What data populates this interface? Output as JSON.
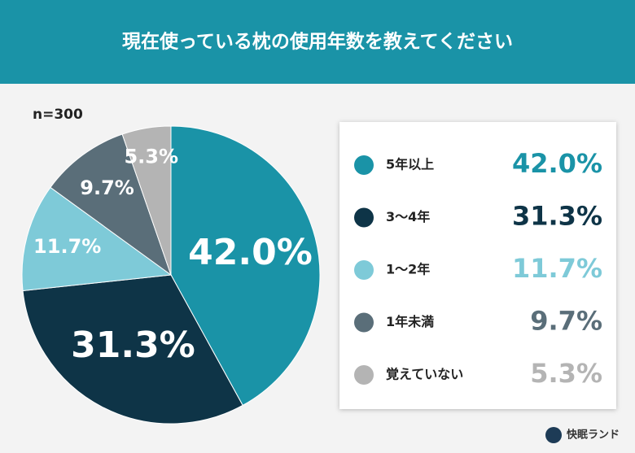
{
  "chart_data": {
    "type": "pie",
    "title": "現在使っている枕の使用年数を教えてください",
    "note": "n=300",
    "categories": [
      "5年以上",
      "3〜4年",
      "1〜2年",
      "1年未満",
      "覚えていない"
    ],
    "values": [
      42.0,
      31.3,
      11.7,
      9.7,
      5.3
    ],
    "value_labels": [
      "42.0%",
      "31.3%",
      "11.7%",
      "9.7%",
      "5.3%"
    ],
    "colors": [
      "#1a93a7",
      "#0e3447",
      "#7ecad8",
      "#5a6e79",
      "#b4b4b4"
    ],
    "legend": "right"
  },
  "brand": "快眠ランド"
}
